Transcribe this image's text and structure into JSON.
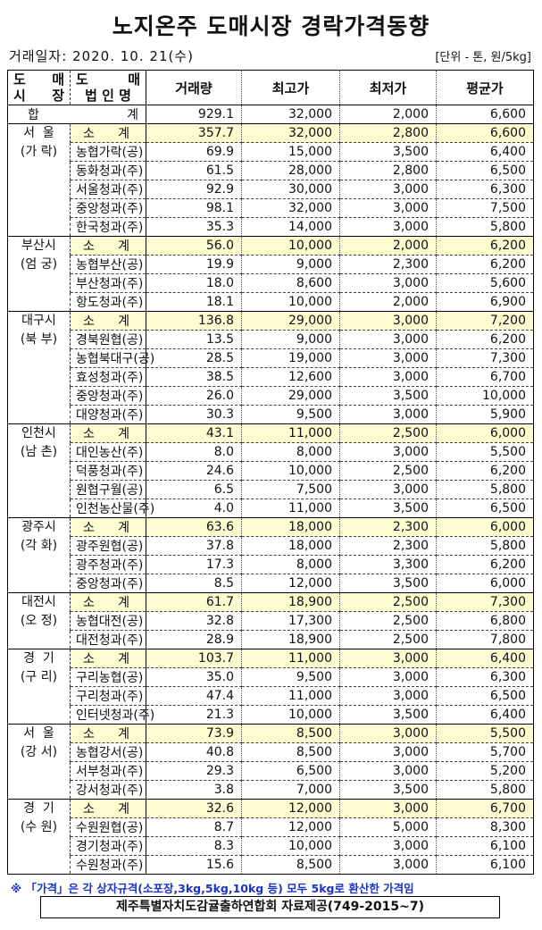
{
  "title": "노지온주 도매시장 경락가격동향",
  "date": "거래일자: 2020. 10. 21(수)",
  "unit": "[단위 - 톤, 원/5kg]",
  "header": {
    "market": [
      "도",
      "매",
      "시",
      "장"
    ],
    "firm": [
      "도",
      "매",
      "법 인 명"
    ],
    "volume": "거래량",
    "max": "최고가",
    "min": "최저가",
    "avg": "평균가"
  },
  "total": {
    "label_a": "합",
    "label_b": "계",
    "volume": "929.1",
    "max": "32,000",
    "min": "2,000",
    "avg": "6,600"
  },
  "subtotal_label": [
    "소",
    "계"
  ],
  "groups": [
    {
      "market": "서  울",
      "sub": "(가 락)",
      "subtotal": [
        "357.7",
        "32,000",
        "2,800",
        "6,600"
      ],
      "rows": [
        [
          "농협가락(공)",
          "69.9",
          "15,000",
          "3,500",
          "6,400"
        ],
        [
          "동화청과(주)",
          "61.5",
          "28,000",
          "2,800",
          "6,500"
        ],
        [
          "서울청과(주)",
          "92.9",
          "30,000",
          "3,000",
          "6,300"
        ],
        [
          "중앙청과(주)",
          "98.1",
          "32,000",
          "3,000",
          "7,500"
        ],
        [
          "한국청과(주)",
          "35.3",
          "14,000",
          "3,000",
          "5,800"
        ]
      ]
    },
    {
      "market": "부산시",
      "sub": "(엄 궁)",
      "subtotal": [
        "56.0",
        "10,000",
        "2,000",
        "6,200"
      ],
      "rows": [
        [
          "농협부산(공)",
          "19.9",
          "9,000",
          "2,300",
          "6,200"
        ],
        [
          "부산청과(주)",
          "18.0",
          "8,600",
          "3,000",
          "5,600"
        ],
        [
          "항도청과(주)",
          "18.1",
          "10,000",
          "2,000",
          "6,900"
        ]
      ]
    },
    {
      "market": "대구시",
      "sub": "(북 부)",
      "subtotal": [
        "136.8",
        "29,000",
        "3,000",
        "7,200"
      ],
      "rows": [
        [
          "경북원협(공)",
          "13.5",
          "9,000",
          "3,000",
          "6,200"
        ],
        [
          "농협북대구(공)",
          "28.5",
          "19,000",
          "3,000",
          "7,300"
        ],
        [
          "효성청과(주)",
          "38.5",
          "12,600",
          "3,000",
          "6,700"
        ],
        [
          "중앙청과(주)",
          "26.0",
          "29,000",
          "3,500",
          "10,000"
        ],
        [
          "대양청과(주)",
          "30.3",
          "9,500",
          "3,000",
          "5,900"
        ]
      ]
    },
    {
      "market": "인천시",
      "sub": "(남 촌)",
      "subtotal": [
        "43.1",
        "11,000",
        "2,500",
        "6,000"
      ],
      "rows": [
        [
          "대인농산(주)",
          "8.0",
          "8,000",
          "3,000",
          "5,500"
        ],
        [
          "덕풍청과(주)",
          "24.6",
          "10,000",
          "2,500",
          "6,200"
        ],
        [
          "원협구월(공)",
          "6.5",
          "7,500",
          "3,000",
          "5,800"
        ],
        [
          "인천농산물(주)",
          "4.0",
          "11,000",
          "3,500",
          "6,500"
        ]
      ]
    },
    {
      "market": "광주시",
      "sub": "(각 화)",
      "subtotal": [
        "63.6",
        "18,000",
        "2,300",
        "6,000"
      ],
      "rows": [
        [
          "광주원협(공)",
          "37.8",
          "18,000",
          "2,300",
          "5,800"
        ],
        [
          "광주청과(주)",
          "17.3",
          "8,000",
          "3,300",
          "6,200"
        ],
        [
          "중앙청과(주)",
          "8.5",
          "12,000",
          "3,500",
          "6,000"
        ]
      ]
    },
    {
      "market": "대전시",
      "sub": "(오 정)",
      "subtotal": [
        "61.7",
        "18,900",
        "2,500",
        "7,300"
      ],
      "rows": [
        [
          "농협대전(공)",
          "32.8",
          "17,300",
          "2,500",
          "6,800"
        ],
        [
          "대전청과(주)",
          "28.9",
          "18,900",
          "2,500",
          "7,800"
        ]
      ]
    },
    {
      "market": "경  기",
      "sub": "(구 리)",
      "subtotal": [
        "103.7",
        "11,000",
        "3,000",
        "6,400"
      ],
      "rows": [
        [
          "구리농협(공)",
          "35.0",
          "9,500",
          "3,000",
          "6,300"
        ],
        [
          "구리청과(주)",
          "47.4",
          "11,000",
          "3,000",
          "6,500"
        ],
        [
          "인터넷청과(주)",
          "21.3",
          "10,000",
          "3,500",
          "6,400"
        ]
      ]
    },
    {
      "market": "서  울",
      "sub": "(강 서)",
      "subtotal": [
        "73.9",
        "8,500",
        "3,000",
        "5,500"
      ],
      "rows": [
        [
          "농협강서(공)",
          "40.8",
          "8,500",
          "3,000",
          "5,700"
        ],
        [
          "서부청과(주)",
          "29.3",
          "6,500",
          "3,000",
          "5,200"
        ],
        [
          "강서청과(주)",
          "3.8",
          "7,000",
          "3,500",
          "5,800"
        ]
      ]
    },
    {
      "market": "경  기",
      "sub": "(수 원)",
      "subtotal": [
        "32.6",
        "12,000",
        "3,000",
        "6,700"
      ],
      "rows": [
        [
          "수원원협(공)",
          "8.7",
          "12,000",
          "5,000",
          "8,300"
        ],
        [
          "경기청과(주)",
          "8.3",
          "10,000",
          "3,000",
          "6,100"
        ],
        [
          "수원청과(주)",
          "15.6",
          "8,500",
          "3,000",
          "6,100"
        ]
      ]
    }
  ],
  "note": "※ 「가격」은 각 상자규격(소포장,3kg,5kg,10kg 등) 모두 5kg로 환산한 가격임",
  "source": "제주특별자치도감귤출하연합회 자료제공(749-2015~7)",
  "colors": {
    "subtotal_bg": "#fdfbd0",
    "note": "#1a33c8"
  }
}
